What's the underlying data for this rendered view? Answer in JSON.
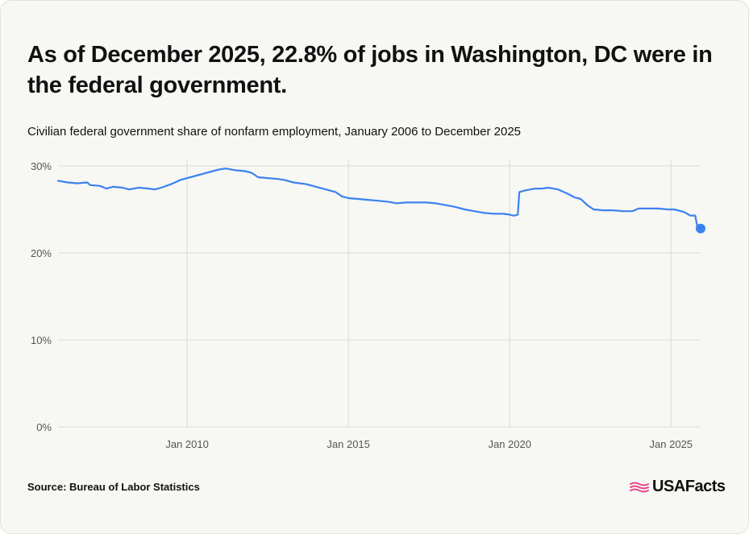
{
  "header": {
    "title": "As of December 2025, 22.8% of jobs in Washington, DC were in the federal government.",
    "subtitle": "Civilian federal government share of nonfarm employment, January 2006 to December 2025"
  },
  "footer": {
    "source": "Source: Bureau of Labor Statistics",
    "brand": "USAFacts"
  },
  "colors": {
    "line": "#3b82f0",
    "grid": "#dcdcd6",
    "axis_text": "#555555",
    "brand_flag": "#e8488a"
  },
  "chart_data": {
    "type": "line",
    "title": "Civilian federal government share of nonfarm employment, January 2006 to December 2025",
    "xlabel": "",
    "ylabel": "",
    "ylim": [
      0,
      30
    ],
    "y_ticks": [
      {
        "value": 0,
        "label": "0%"
      },
      {
        "value": 10,
        "label": "10%"
      },
      {
        "value": 20,
        "label": "20%"
      },
      {
        "value": 30,
        "label": "30%"
      }
    ],
    "x_range": [
      2006.0,
      2025.917
    ],
    "x_ticks": [
      {
        "value": 2010.0,
        "label": "Jan 2010"
      },
      {
        "value": 2015.0,
        "label": "Jan 2015"
      },
      {
        "value": 2020.0,
        "label": "Jan 2020"
      },
      {
        "value": 2025.0,
        "label": "Jan 2025"
      }
    ],
    "grid": true,
    "legend": "none",
    "series": [
      {
        "points": [
          [
            2006.0,
            28.3
          ],
          [
            2006.3,
            28.1
          ],
          [
            2006.6,
            28.0
          ],
          [
            2006.9,
            28.1
          ],
          [
            2007.0,
            27.8
          ],
          [
            2007.3,
            27.7
          ],
          [
            2007.5,
            27.4
          ],
          [
            2007.7,
            27.6
          ],
          [
            2008.0,
            27.5
          ],
          [
            2008.2,
            27.3
          ],
          [
            2008.5,
            27.5
          ],
          [
            2008.8,
            27.4
          ],
          [
            2009.0,
            27.3
          ],
          [
            2009.2,
            27.5
          ],
          [
            2009.5,
            27.9
          ],
          [
            2009.8,
            28.4
          ],
          [
            2010.0,
            28.6
          ],
          [
            2010.2,
            28.8
          ],
          [
            2010.5,
            29.1
          ],
          [
            2010.8,
            29.4
          ],
          [
            2011.0,
            29.6
          ],
          [
            2011.2,
            29.7
          ],
          [
            2011.5,
            29.5
          ],
          [
            2011.8,
            29.4
          ],
          [
            2012.0,
            29.2
          ],
          [
            2012.2,
            28.7
          ],
          [
            2012.5,
            28.6
          ],
          [
            2012.8,
            28.5
          ],
          [
            2013.0,
            28.4
          ],
          [
            2013.3,
            28.1
          ],
          [
            2013.7,
            27.9
          ],
          [
            2014.0,
            27.6
          ],
          [
            2014.3,
            27.3
          ],
          [
            2014.6,
            27.0
          ],
          [
            2014.8,
            26.5
          ],
          [
            2015.0,
            26.3
          ],
          [
            2015.3,
            26.2
          ],
          [
            2015.6,
            26.1
          ],
          [
            2015.9,
            26.0
          ],
          [
            2016.2,
            25.9
          ],
          [
            2016.5,
            25.7
          ],
          [
            2016.8,
            25.8
          ],
          [
            2017.1,
            25.8
          ],
          [
            2017.4,
            25.8
          ],
          [
            2017.7,
            25.7
          ],
          [
            2018.0,
            25.5
          ],
          [
            2018.3,
            25.3
          ],
          [
            2018.6,
            25.0
          ],
          [
            2018.9,
            24.8
          ],
          [
            2019.2,
            24.6
          ],
          [
            2019.5,
            24.5
          ],
          [
            2019.8,
            24.5
          ],
          [
            2020.0,
            24.4
          ],
          [
            2020.1,
            24.3
          ],
          [
            2020.15,
            24.3
          ],
          [
            2020.25,
            24.4
          ],
          [
            2020.3,
            27.0
          ],
          [
            2020.5,
            27.2
          ],
          [
            2020.8,
            27.4
          ],
          [
            2021.0,
            27.4
          ],
          [
            2021.2,
            27.5
          ],
          [
            2021.5,
            27.3
          ],
          [
            2021.8,
            26.8
          ],
          [
            2022.0,
            26.4
          ],
          [
            2022.2,
            26.2
          ],
          [
            2022.4,
            25.5
          ],
          [
            2022.6,
            25.0
          ],
          [
            2022.9,
            24.9
          ],
          [
            2023.2,
            24.9
          ],
          [
            2023.5,
            24.8
          ],
          [
            2023.8,
            24.8
          ],
          [
            2024.0,
            25.1
          ],
          [
            2024.3,
            25.1
          ],
          [
            2024.6,
            25.1
          ],
          [
            2024.9,
            25.0
          ],
          [
            2025.1,
            25.0
          ],
          [
            2025.4,
            24.7
          ],
          [
            2025.6,
            24.3
          ],
          [
            2025.75,
            24.3
          ],
          [
            2025.83,
            22.7
          ],
          [
            2025.917,
            22.8
          ]
        ]
      }
    ],
    "endpoint": {
      "x": 2025.917,
      "y": 22.8
    }
  }
}
